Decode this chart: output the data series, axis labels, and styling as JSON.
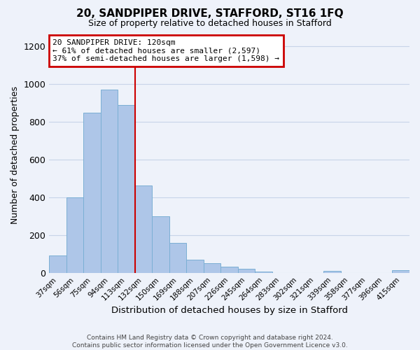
{
  "title": "20, SANDPIPER DRIVE, STAFFORD, ST16 1FQ",
  "subtitle": "Size of property relative to detached houses in Stafford",
  "xlabel": "Distribution of detached houses by size in Stafford",
  "ylabel": "Number of detached properties",
  "bar_labels": [
    "37sqm",
    "56sqm",
    "75sqm",
    "94sqm",
    "113sqm",
    "132sqm",
    "150sqm",
    "169sqm",
    "188sqm",
    "207sqm",
    "226sqm",
    "245sqm",
    "264sqm",
    "283sqm",
    "302sqm",
    "321sqm",
    "339sqm",
    "358sqm",
    "377sqm",
    "396sqm",
    "415sqm"
  ],
  "bar_values": [
    90,
    400,
    848,
    970,
    890,
    462,
    298,
    160,
    68,
    50,
    32,
    20,
    5,
    0,
    0,
    0,
    10,
    0,
    0,
    0,
    12
  ],
  "bar_color": "#aec6e8",
  "bar_edge_color": "#7bafd4",
  "bg_color": "#eef2fa",
  "grid_color": "#c8d4e8",
  "vline_x": 4.5,
  "vline_color": "#cc0000",
  "annotation_lines": [
    "20 SANDPIPER DRIVE: 120sqm",
    "← 61% of detached houses are smaller (2,597)",
    "37% of semi-detached houses are larger (1,598) →"
  ],
  "annotation_box_color": "#ffffff",
  "annotation_box_edge_color": "#cc0000",
  "footer_lines": [
    "Contains HM Land Registry data © Crown copyright and database right 2024.",
    "Contains public sector information licensed under the Open Government Licence v3.0."
  ],
  "ylim": [
    0,
    1250
  ],
  "yticks": [
    0,
    200,
    400,
    600,
    800,
    1000,
    1200
  ]
}
